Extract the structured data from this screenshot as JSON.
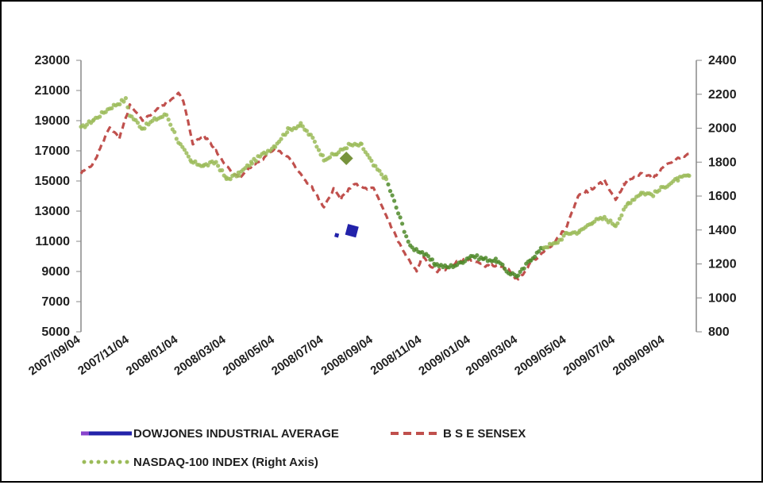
{
  "chart_data": {
    "type": "line",
    "title": "",
    "xlabel": "",
    "ylabel": "",
    "y_left": {
      "lim": [
        5000,
        23000
      ],
      "ticks": [
        "23000",
        "21000",
        "19000",
        "17000",
        "15000",
        "13000",
        "11000",
        "9000",
        "7000",
        "5000"
      ]
    },
    "y_right": {
      "lim": [
        800,
        2400
      ],
      "ticks": [
        "2400",
        "2200",
        "2000",
        "1800",
        "1600",
        "1400",
        "1200",
        "1000",
        "800"
      ]
    },
    "x_ticks": [
      "2007/09/04",
      "2007/11/04",
      "2008/01/04",
      "2008/03/04",
      "2008/05/04",
      "2008/07/04",
      "2008/09/04",
      "2008/11/04",
      "2009/01/04",
      "2009/03/04",
      "2009/05/04",
      "2009/07/04",
      "2009/09/04"
    ],
    "x_range": [
      "2007/09/04",
      "2009/10/04"
    ],
    "grid": false,
    "legend_placement": "bottom-left",
    "series": [
      {
        "name": "DOWJONES INDUSTRIAL AVERAGE",
        "axis": "left",
        "color": "#2222aa",
        "style": "markers",
        "x": [
          "2008/07/20",
          "2008/08/08"
        ],
        "y": [
          11400,
          11700
        ]
      },
      {
        "name": "B S E SENSEX",
        "axis": "left",
        "color": "#c0504d",
        "style": "dashed",
        "x": [
          "2007/09/04",
          "2007/09/20",
          "2007/10/10",
          "2007/10/22",
          "2007/11/04",
          "2007/11/20",
          "2007/12/05",
          "2007/12/20",
          "2008/01/04",
          "2008/01/10",
          "2008/01/22",
          "2008/02/05",
          "2008/02/20",
          "2008/03/04",
          "2008/03/20",
          "2008/04/05",
          "2008/04/20",
          "2008/05/04",
          "2008/05/20",
          "2008/06/05",
          "2008/06/20",
          "2008/07/04",
          "2008/07/16",
          "2008/07/25",
          "2008/08/10",
          "2008/08/25",
          "2008/09/04",
          "2008/09/20",
          "2008/10/05",
          "2008/10/15",
          "2008/10/28",
          "2008/11/04",
          "2008/11/21",
          "2008/12/05",
          "2008/12/20",
          "2009/01/04",
          "2009/01/20",
          "2009/02/05",
          "2009/02/20",
          "2009/03/04",
          "2009/03/20",
          "2009/04/05",
          "2009/04/20",
          "2009/05/04",
          "2009/05/18",
          "2009/06/05",
          "2009/06/20",
          "2009/07/04",
          "2009/07/15",
          "2009/08/04",
          "2009/08/20",
          "2009/09/04",
          "2009/09/20",
          "2009/10/04"
        ],
        "y": [
          15500,
          16200,
          18600,
          17800,
          20000,
          19000,
          19600,
          20200,
          20800,
          20300,
          17500,
          18000,
          17000,
          16000,
          15200,
          16000,
          16500,
          17200,
          16600,
          15400,
          14500,
          13200,
          14500,
          13800,
          14800,
          14500,
          14500,
          12700,
          11000,
          10000,
          9000,
          10000,
          9000,
          9200,
          9700,
          9800,
          9400,
          9400,
          9100,
          8400,
          9600,
          10300,
          11000,
          12000,
          14000,
          14500,
          15000,
          13800,
          14800,
          15500,
          15200,
          16000,
          16500,
          16800
        ]
      },
      {
        "name": "NASDAQ-100 INDEX (Right Axis)",
        "axis": "right",
        "color": "#9bbb59",
        "style": "dotted",
        "x": [
          "2007/09/04",
          "2007/09/20",
          "2007/10/10",
          "2007/10/30",
          "2007/11/04",
          "2007/11/20",
          "2007/12/05",
          "2007/12/20",
          "2008/01/04",
          "2008/01/20",
          "2008/02/05",
          "2008/02/20",
          "2008/03/04",
          "2008/03/20",
          "2008/04/05",
          "2008/04/20",
          "2008/05/04",
          "2008/05/20",
          "2008/06/05",
          "2008/06/20",
          "2008/07/04",
          "2008/07/20",
          "2008/08/04",
          "2008/08/20",
          "2008/09/04",
          "2008/09/20",
          "2008/10/05",
          "2008/10/20",
          "2008/11/04",
          "2008/11/20",
          "2008/12/05",
          "2008/12/20",
          "2009/01/04",
          "2009/01/20",
          "2009/02/05",
          "2009/02/20",
          "2009/03/04",
          "2009/03/20",
          "2009/04/05",
          "2009/04/20",
          "2009/05/04",
          "2009/05/20",
          "2009/06/05",
          "2009/06/20",
          "2009/07/04",
          "2009/07/20",
          "2009/08/05",
          "2009/08/20",
          "2009/09/04",
          "2009/09/20",
          "2009/10/04"
        ],
        "y": [
          2000,
          2050,
          2120,
          2170,
          2080,
          2000,
          2050,
          2080,
          1920,
          1800,
          1780,
          1800,
          1700,
          1730,
          1800,
          1850,
          1900,
          1990,
          2020,
          1940,
          1820,
          1850,
          1900,
          1900,
          1780,
          1700,
          1500,
          1300,
          1270,
          1200,
          1180,
          1200,
          1250,
          1230,
          1220,
          1150,
          1130,
          1230,
          1300,
          1320,
          1380,
          1390,
          1450,
          1470,
          1430,
          1560,
          1620,
          1610,
          1660,
          1700,
          1720
        ]
      }
    ],
    "annotations": [
      {
        "axis": "left",
        "x": "2008/08/01",
        "y": 16500,
        "color": "#77933c"
      }
    ]
  }
}
